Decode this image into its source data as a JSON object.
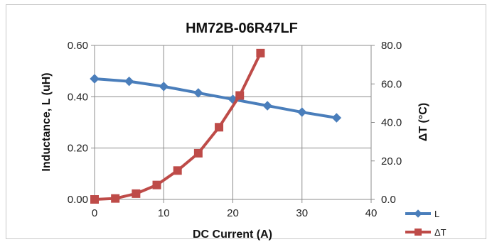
{
  "chart_data": {
    "type": "line",
    "title": "HM72B-06R47LF",
    "xlabel": "DC Current (A)",
    "ylabel": "Inductance, L (uH)",
    "y2label": "ΔT (°C)",
    "xlim": [
      0,
      40
    ],
    "ylim": [
      0,
      0.6
    ],
    "y2lim": [
      0,
      80
    ],
    "x_ticks": [
      "0",
      "10",
      "20",
      "30",
      "40"
    ],
    "y_ticks": [
      "0.00",
      "0.20",
      "0.40",
      "0.60"
    ],
    "y2_ticks": [
      "0.0",
      "20.0",
      "40.0",
      "60.0",
      "80.0"
    ],
    "grid": true,
    "legend_position": "bottom-right",
    "series": [
      {
        "name": "L",
        "axis": "left",
        "color": "#4a7ebb",
        "marker": "diamond",
        "x": [
          0,
          5,
          10,
          15,
          20,
          25,
          30,
          35
        ],
        "y": [
          0.47,
          0.46,
          0.44,
          0.415,
          0.39,
          0.365,
          0.34,
          0.318
        ]
      },
      {
        "name": "ΔT",
        "axis": "right",
        "color": "#be4b48",
        "marker": "square",
        "x": [
          0,
          3,
          6,
          9,
          12,
          15,
          18,
          21,
          24
        ],
        "y": [
          0,
          0.5,
          3,
          7.5,
          15,
          24,
          37.5,
          54,
          76
        ]
      }
    ]
  }
}
